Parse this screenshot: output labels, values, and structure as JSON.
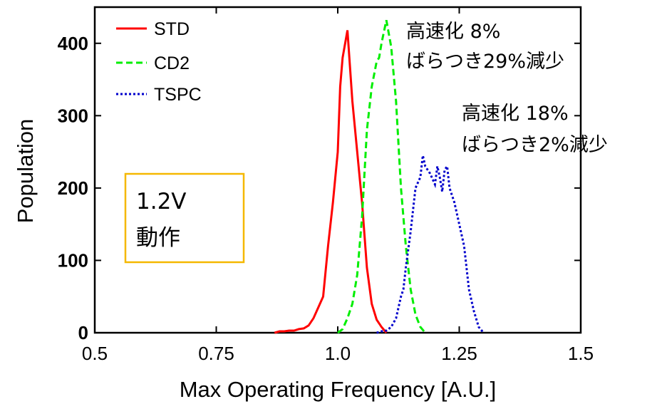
{
  "chart_data": {
    "type": "line",
    "title": "",
    "xlabel": "Max Operating Frequency [A.U.]",
    "ylabel": "Population",
    "xlim": [
      0.5,
      1.5
    ],
    "ylim": [
      0,
      450
    ],
    "x_ticks": [
      "0.5",
      "0.75",
      "1.0",
      "1.25",
      "1.5"
    ],
    "x_tick_values": [
      0.5,
      0.75,
      1.0,
      1.25,
      1.5
    ],
    "y_ticks": [
      "0",
      "100",
      "200",
      "300",
      "400"
    ],
    "y_tick_values": [
      0,
      100,
      200,
      300,
      400
    ],
    "grid": false,
    "legend_position": "top-left",
    "series": [
      {
        "name": "STD",
        "color": "#ff0000",
        "dash": "solid",
        "points": [
          [
            0.87,
            0
          ],
          [
            0.88,
            2
          ],
          [
            0.89,
            2
          ],
          [
            0.9,
            3
          ],
          [
            0.91,
            3
          ],
          [
            0.92,
            5
          ],
          [
            0.93,
            6
          ],
          [
            0.94,
            10
          ],
          [
            0.95,
            20
          ],
          [
            0.96,
            35
          ],
          [
            0.97,
            50
          ],
          [
            0.98,
            120
          ],
          [
            0.99,
            180
          ],
          [
            1.0,
            250
          ],
          [
            1.005,
            340
          ],
          [
            1.01,
            380
          ],
          [
            1.02,
            418
          ],
          [
            1.03,
            320
          ],
          [
            1.04,
            250
          ],
          [
            1.05,
            180
          ],
          [
            1.06,
            90
          ],
          [
            1.07,
            40
          ],
          [
            1.08,
            18
          ],
          [
            1.09,
            8
          ],
          [
            1.1,
            0
          ]
        ]
      },
      {
        "name": "CD2",
        "color": "#00ee00",
        "dash": "dashed",
        "points": [
          [
            1.0,
            0
          ],
          [
            1.01,
            5
          ],
          [
            1.02,
            20
          ],
          [
            1.03,
            40
          ],
          [
            1.04,
            80
          ],
          [
            1.05,
            160
          ],
          [
            1.055,
            220
          ],
          [
            1.06,
            280
          ],
          [
            1.07,
            340
          ],
          [
            1.08,
            375
          ],
          [
            1.085,
            380
          ],
          [
            1.09,
            400
          ],
          [
            1.1,
            432
          ],
          [
            1.11,
            395
          ],
          [
            1.12,
            320
          ],
          [
            1.13,
            200
          ],
          [
            1.14,
            120
          ],
          [
            1.15,
            60
          ],
          [
            1.16,
            25
          ],
          [
            1.17,
            8
          ],
          [
            1.18,
            0
          ]
        ]
      },
      {
        "name": "TSPC",
        "color": "#0000cc",
        "dash": "dotted",
        "points": [
          [
            1.08,
            0
          ],
          [
            1.09,
            2
          ],
          [
            1.1,
            3
          ],
          [
            1.11,
            8
          ],
          [
            1.12,
            20
          ],
          [
            1.13,
            50
          ],
          [
            1.135,
            60
          ],
          [
            1.14,
            90
          ],
          [
            1.15,
            140
          ],
          [
            1.16,
            200
          ],
          [
            1.17,
            215
          ],
          [
            1.175,
            245
          ],
          [
            1.18,
            230
          ],
          [
            1.19,
            220
          ],
          [
            1.2,
            205
          ],
          [
            1.205,
            230
          ],
          [
            1.21,
            215
          ],
          [
            1.215,
            195
          ],
          [
            1.22,
            225
          ],
          [
            1.225,
            230
          ],
          [
            1.23,
            200
          ],
          [
            1.24,
            180
          ],
          [
            1.25,
            150
          ],
          [
            1.26,
            120
          ],
          [
            1.27,
            60
          ],
          [
            1.28,
            30
          ],
          [
            1.29,
            8
          ],
          [
            1.3,
            0
          ]
        ]
      }
    ],
    "annotations": [
      {
        "text_lines": [
          "高速化 8%",
          "ばらつき29%減少"
        ]
      },
      {
        "text_lines": [
          "高速化 18%",
          "ばらつき2%減少"
        ]
      }
    ],
    "condition_box": {
      "lines": [
        "1.2V",
        "動作"
      ],
      "border_color": "#f5b800"
    }
  }
}
